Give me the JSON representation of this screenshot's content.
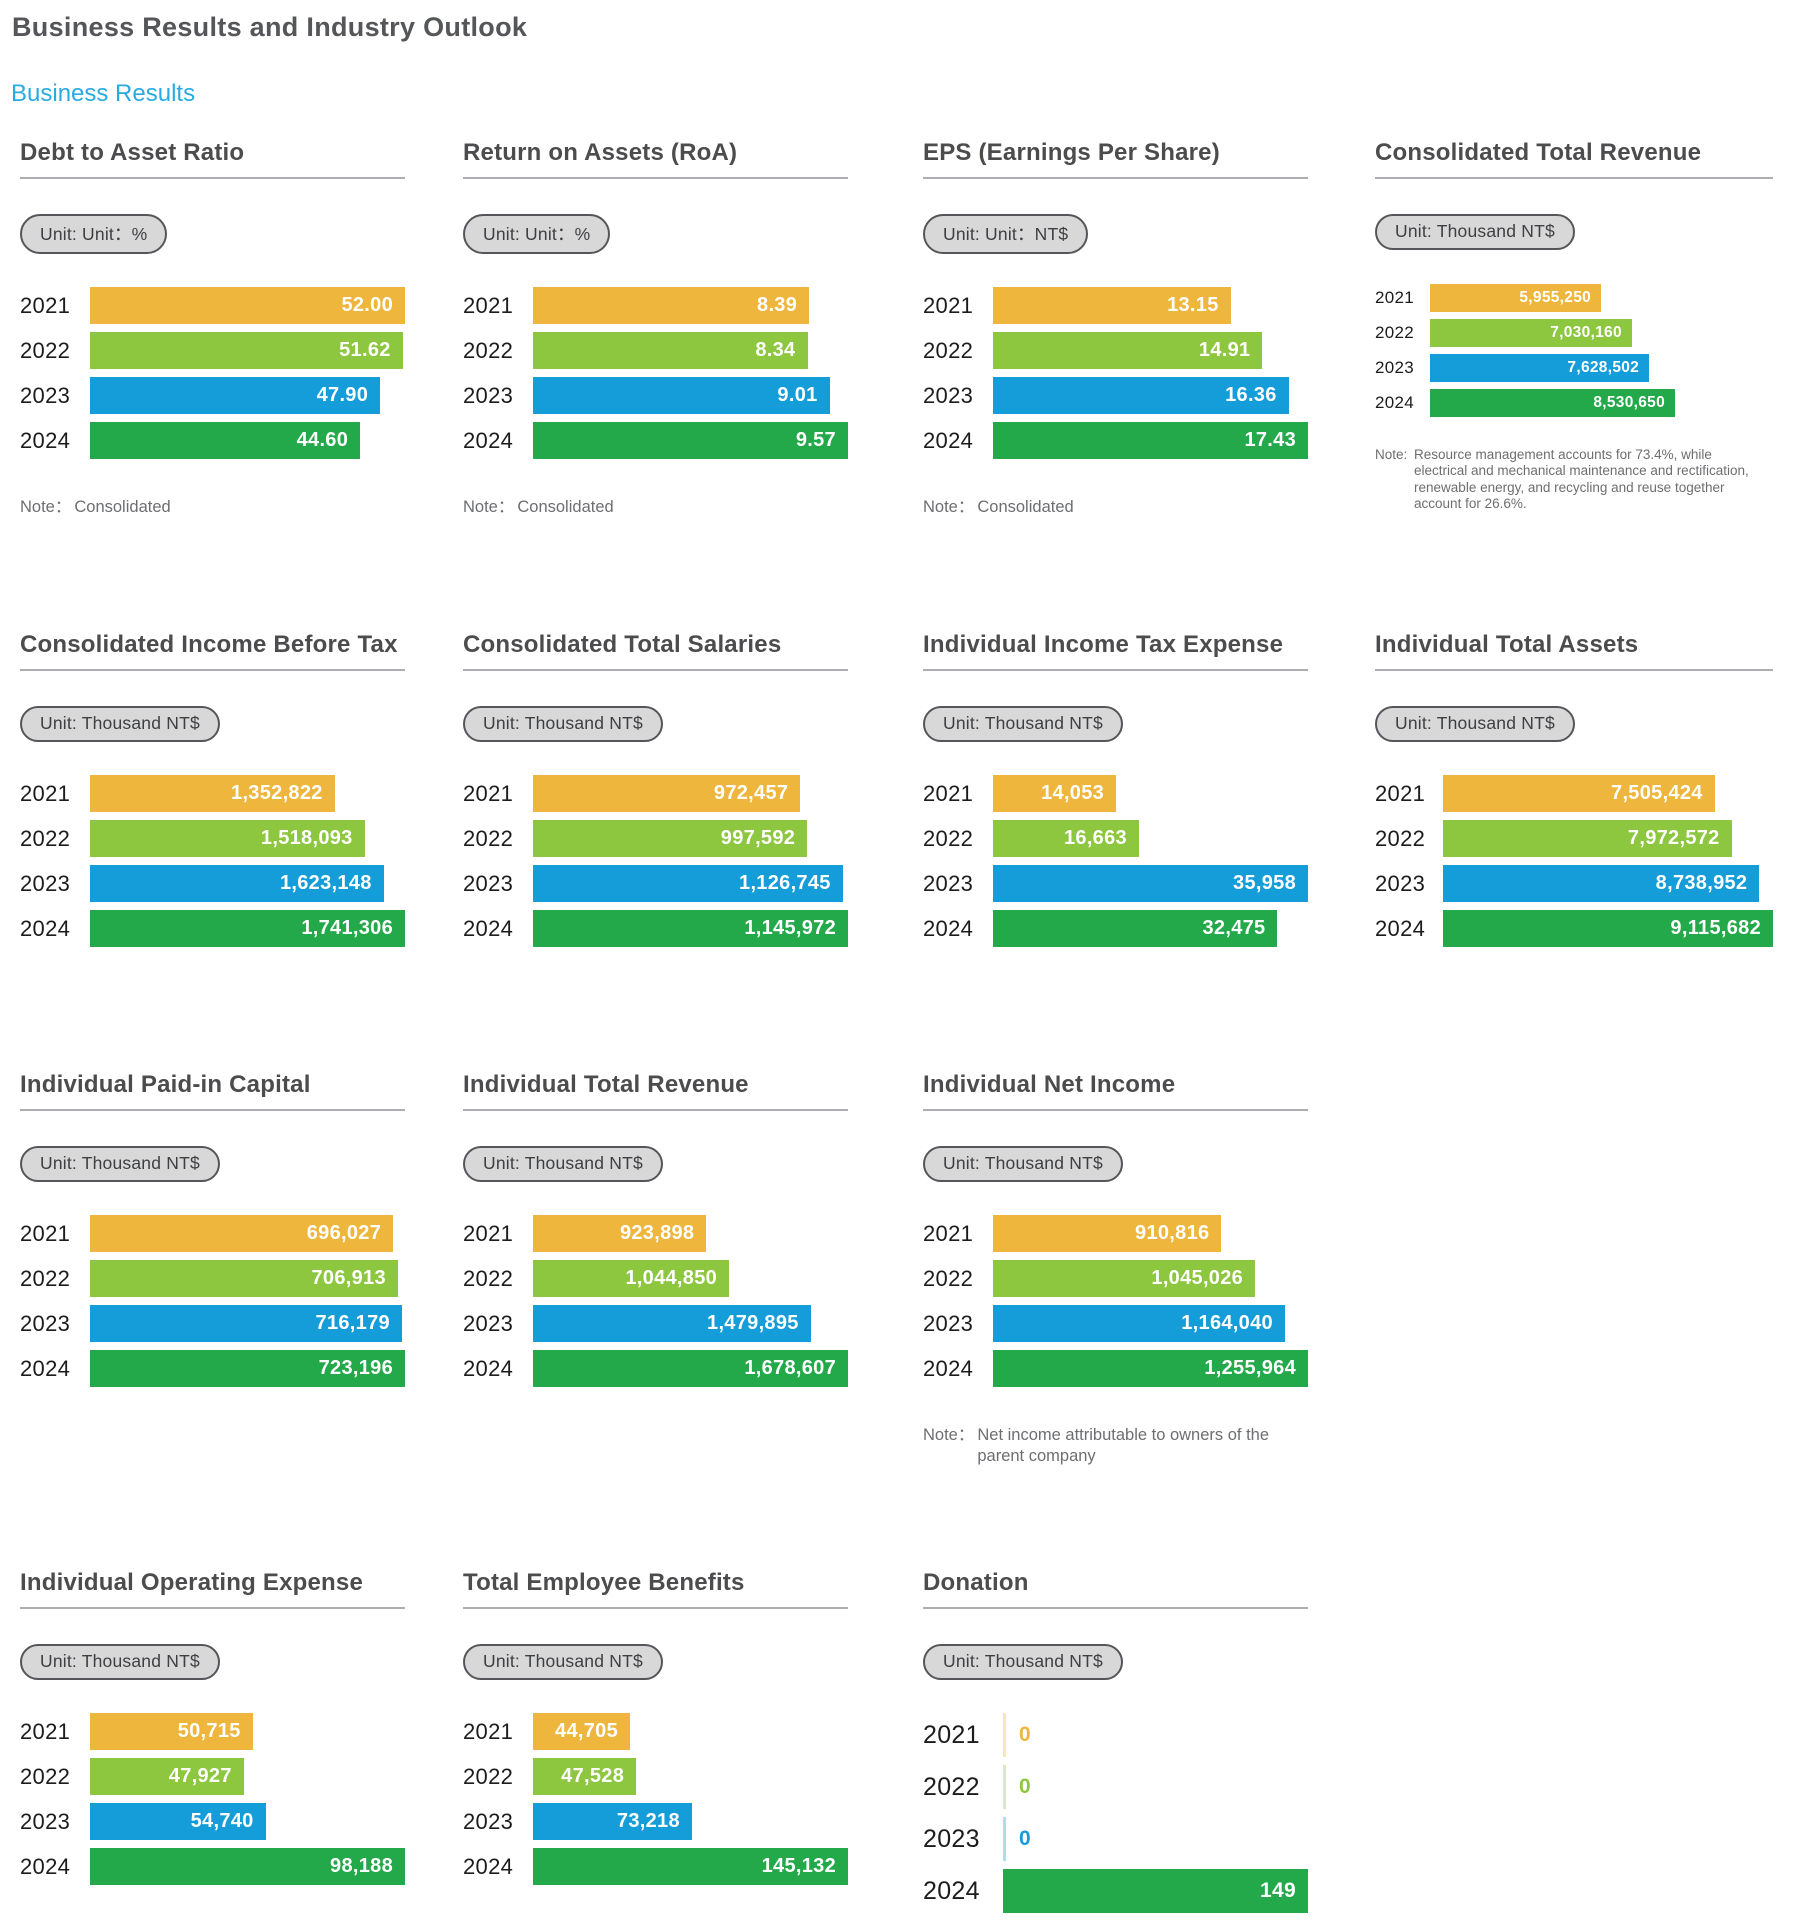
{
  "header": {
    "title": "Business Results and Industry Outlook",
    "subtitle": "Business Results"
  },
  "years": [
    "2021",
    "2022",
    "2023",
    "2024"
  ],
  "year_colors": [
    "#EEB63C",
    "#8DC63F",
    "#149DD9",
    "#23A84A"
  ],
  "chart_data": [
    {
      "type": "bar",
      "orientation": "horizontal",
      "title": "Debt to Asset Ratio",
      "unit_label": "Unit: Unit：%",
      "categories": [
        "2021",
        "2022",
        "2023",
        "2024"
      ],
      "values": [
        52.0,
        51.62,
        47.9,
        44.6
      ],
      "value_labels": [
        "52.00",
        "51.62",
        "47.90",
        "44.60"
      ],
      "note_label": "Note：",
      "note_text": "Consolidated",
      "layout": {
        "col": 1,
        "row": 1,
        "variant": "standard"
      }
    },
    {
      "type": "bar",
      "orientation": "horizontal",
      "title": "Return on Assets (RoA)",
      "unit_label": "Unit: Unit：%",
      "categories": [
        "2021",
        "2022",
        "2023",
        "2024"
      ],
      "values": [
        8.39,
        8.34,
        9.01,
        9.57
      ],
      "value_labels": [
        "8.39",
        "8.34",
        "9.01",
        "9.57"
      ],
      "note_label": "Note：",
      "note_text": "Consolidated",
      "layout": {
        "col": 2,
        "row": 1,
        "variant": "standard"
      }
    },
    {
      "type": "bar",
      "orientation": "horizontal",
      "title": "EPS (Earnings Per Share)",
      "unit_label": "Unit: Unit：NT$",
      "categories": [
        "2021",
        "2022",
        "2023",
        "2024"
      ],
      "values": [
        13.15,
        14.91,
        16.36,
        17.43
      ],
      "value_labels": [
        "13.15",
        "14.91",
        "16.36",
        "17.43"
      ],
      "note_label": "Note：",
      "note_text": "Consolidated",
      "layout": {
        "col": 3,
        "row": 1,
        "variant": "standard"
      }
    },
    {
      "type": "bar",
      "orientation": "horizontal",
      "title": "Consolidated Total Revenue",
      "unit_label": "Unit: Thousand NT$",
      "categories": [
        "2021",
        "2022",
        "2023",
        "2024"
      ],
      "values": [
        5955250,
        7030160,
        7628502,
        8530650
      ],
      "value_labels": [
        "5,955,250",
        "7,030,160",
        "7,628,502",
        "8,530,650"
      ],
      "note_label": "Note: ",
      "note_text": "Resource management accounts for 73.4%, while electrical and mechanical maintenance and rectification, renewable energy, and recycling and reuse together account for 26.6%.",
      "layout": {
        "col": 4,
        "row": 1,
        "variant": "small"
      }
    },
    {
      "type": "bar",
      "orientation": "horizontal",
      "title": "Consolidated Income Before Tax",
      "unit_label": "Unit: Thousand NT$",
      "categories": [
        "2021",
        "2022",
        "2023",
        "2024"
      ],
      "values": [
        1352822,
        1518093,
        1623148,
        1741306
      ],
      "value_labels": [
        "1,352,822",
        "1,518,093",
        "1,623,148",
        "1,741,306"
      ],
      "note_label": null,
      "note_text": null,
      "layout": {
        "col": 1,
        "row": 2,
        "variant": "standard"
      }
    },
    {
      "type": "bar",
      "orientation": "horizontal",
      "title": "Consolidated Total Salaries",
      "unit_label": "Unit: Thousand NT$",
      "categories": [
        "2021",
        "2022",
        "2023",
        "2024"
      ],
      "values": [
        972457,
        997592,
        1126745,
        1145972
      ],
      "value_labels": [
        "972,457",
        "997,592",
        "1,126,745",
        "1,145,972"
      ],
      "note_label": null,
      "note_text": null,
      "layout": {
        "col": 2,
        "row": 2,
        "variant": "standard"
      }
    },
    {
      "type": "bar",
      "orientation": "horizontal",
      "title": "Individual Income Tax Expense",
      "unit_label": "Unit: Thousand NT$",
      "categories": [
        "2021",
        "2022",
        "2023",
        "2024"
      ],
      "values": [
        14053,
        16663,
        35958,
        32475
      ],
      "value_labels": [
        "14,053",
        "16,663",
        "35,958",
        "32,475"
      ],
      "note_label": null,
      "note_text": null,
      "layout": {
        "col": 3,
        "row": 2,
        "variant": "standard"
      }
    },
    {
      "type": "bar",
      "orientation": "horizontal",
      "title": "Individual Total Assets",
      "unit_label": "Unit: Thousand NT$",
      "categories": [
        "2021",
        "2022",
        "2023",
        "2024"
      ],
      "values": [
        7505424,
        7972572,
        8738952,
        9115682
      ],
      "value_labels": [
        "7,505,424",
        "7,972,572",
        "8,738,952",
        "9,115,682"
      ],
      "note_label": null,
      "note_text": null,
      "layout": {
        "col": 4,
        "row": 2,
        "variant": "wide"
      }
    },
    {
      "type": "bar",
      "orientation": "horizontal",
      "title": "Individual Paid-in Capital",
      "unit_label": "Unit: Thousand NT$",
      "categories": [
        "2021",
        "2022",
        "2023",
        "2024"
      ],
      "values": [
        696027,
        706913,
        716179,
        723196
      ],
      "value_labels": [
        "696,027",
        "706,913",
        "716,179",
        "723,196"
      ],
      "note_label": null,
      "note_text": null,
      "layout": {
        "col": 1,
        "row": 3,
        "variant": "standard"
      }
    },
    {
      "type": "bar",
      "orientation": "horizontal",
      "title": "Individual Total Revenue",
      "unit_label": "Unit: Thousand NT$",
      "categories": [
        "2021",
        "2022",
        "2023",
        "2024"
      ],
      "values": [
        923898,
        1044850,
        1479895,
        1678607
      ],
      "value_labels": [
        "923,898",
        "1,044,850",
        "1,479,895",
        "1,678,607"
      ],
      "note_label": null,
      "note_text": null,
      "layout": {
        "col": 2,
        "row": 3,
        "variant": "standard"
      }
    },
    {
      "type": "bar",
      "orientation": "horizontal",
      "title": "Individual Net Income",
      "unit_label": "Unit: Thousand NT$",
      "categories": [
        "2021",
        "2022",
        "2023",
        "2024"
      ],
      "values": [
        910816,
        1045026,
        1164040,
        1255964
      ],
      "value_labels": [
        "910,816",
        "1,045,026",
        "1,164,040",
        "1,255,964"
      ],
      "note_label": "Note：",
      "note_text": "Net income attributable to owners of the parent company",
      "layout": {
        "col": 3,
        "row": 3,
        "variant": "standard"
      }
    },
    {
      "type": "bar",
      "orientation": "horizontal",
      "title": "Individual Operating Expense",
      "unit_label": "Unit: Thousand NT$",
      "categories": [
        "2021",
        "2022",
        "2023",
        "2024"
      ],
      "values": [
        50715,
        47927,
        54740,
        98188
      ],
      "value_labels": [
        "50,715",
        "47,927",
        "54,740",
        "98,188"
      ],
      "note_label": null,
      "note_text": null,
      "layout": {
        "col": 1,
        "row": 4,
        "variant": "standard"
      }
    },
    {
      "type": "bar",
      "orientation": "horizontal",
      "title": "Total Employee Benefits",
      "unit_label": "Unit: Thousand NT$",
      "categories": [
        "2021",
        "2022",
        "2023",
        "2024"
      ],
      "values": [
        44705,
        47528,
        73218,
        145132
      ],
      "value_labels": [
        "44,705",
        "47,528",
        "73,218",
        "145,132"
      ],
      "note_label": null,
      "note_text": null,
      "layout": {
        "col": 2,
        "row": 4,
        "variant": "standard"
      }
    },
    {
      "type": "bar",
      "orientation": "horizontal",
      "title": "Donation",
      "unit_label": "Unit: Thousand NT$",
      "categories": [
        "2021",
        "2022",
        "2023",
        "2024"
      ],
      "values": [
        0,
        0,
        0,
        149
      ],
      "value_labels": [
        "0",
        "0",
        "0",
        "149"
      ],
      "note_label": null,
      "note_text": null,
      "layout": {
        "col": 3,
        "row": 4,
        "variant": "tall"
      }
    }
  ]
}
